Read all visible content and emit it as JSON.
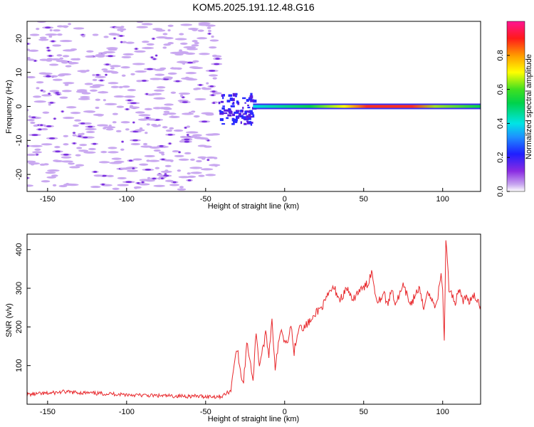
{
  "title": "KOM5.2025.191.12.48.G16",
  "colors": {
    "snr_line": "#e8282c",
    "speckle_light": "#c9a8f0",
    "speckle_dark": "#7a2fe0"
  },
  "chart_data": [
    {
      "type": "heatmap",
      "title": "KOM5.2025.191.12.48.G16",
      "xlabel": "Height of straight line (km)",
      "ylabel": "Frequency (Hz)",
      "xlim": [
        -163,
        124
      ],
      "ylim": [
        -25,
        25
      ],
      "xticks": [
        -150,
        -100,
        -50,
        0,
        50,
        100
      ],
      "yticks": [
        -20,
        -10,
        0,
        10,
        20
      ],
      "colorbar": {
        "label": "Normalized spectral amplitude",
        "range": [
          0,
          1
        ],
        "ticks": [
          "0.0",
          "0.2",
          "0.4",
          "0.6",
          "0.8"
        ],
        "tick_values": [
          0,
          0.2,
          0.4,
          0.6,
          0.8
        ],
        "colormap": "rainbow (white-purple-blue-cyan-green-yellow-red-pink)"
      },
      "features": [
        {
          "label": "noise",
          "x_range": [
            -163,
            -42
          ],
          "y_range": [
            -25,
            25
          ],
          "amplitude": 0.1
        },
        {
          "label": "onset",
          "x_range": [
            -42,
            -20
          ],
          "y_range": [
            -5,
            4
          ],
          "amplitude": 0.15
        },
        {
          "label": "signal",
          "x_range": [
            -20,
            124
          ],
          "y_center": 0,
          "amplitude": 0.8
        }
      ]
    },
    {
      "type": "line",
      "xlabel": "Height of straight line (km)",
      "ylabel": "SNR (v/v)",
      "xlim": [
        -163,
        124
      ],
      "ylim": [
        0,
        440
      ],
      "xticks": [
        -150,
        -100,
        -50,
        0,
        50,
        100
      ],
      "yticks": [
        100,
        200,
        300,
        400
      ],
      "x": [
        -163,
        -150,
        -140,
        -130,
        -120,
        -110,
        -100,
        -90,
        -80,
        -70,
        -60,
        -50,
        -40,
        -34,
        -32,
        -30,
        -28,
        -26,
        -24,
        -22,
        -20,
        -18,
        -16,
        -14,
        -12,
        -10,
        -8,
        -6,
        -4,
        -2,
        0,
        2,
        4,
        6,
        8,
        10,
        12,
        15,
        18,
        20,
        22,
        25,
        28,
        30,
        32,
        35,
        38,
        40,
        43,
        45,
        48,
        50,
        53,
        55,
        58,
        60,
        63,
        65,
        68,
        70,
        73,
        75,
        78,
        80,
        83,
        85,
        88,
        90,
        93,
        95,
        97,
        99,
        100,
        101,
        102,
        104,
        106,
        108,
        110,
        113,
        115,
        118,
        120,
        124
      ],
      "y": [
        25,
        28,
        32,
        30,
        28,
        27,
        25,
        23,
        22,
        21,
        21,
        20,
        20,
        35,
        110,
        145,
        80,
        55,
        160,
        120,
        60,
        190,
        100,
        140,
        180,
        130,
        220,
        95,
        150,
        200,
        160,
        170,
        205,
        135,
        185,
        210,
        195,
        212,
        218,
        240,
        245,
        260,
        285,
        300,
        295,
        270,
        290,
        300,
        260,
        285,
        295,
        300,
        315,
        345,
        275,
        270,
        290,
        255,
        300,
        260,
        285,
        305,
        275,
        260,
        285,
        300,
        245,
        295,
        270,
        255,
        280,
        335,
        300,
        160,
        430,
        300,
        285,
        260,
        300,
        270,
        275,
        265,
        280,
        255
      ]
    }
  ]
}
